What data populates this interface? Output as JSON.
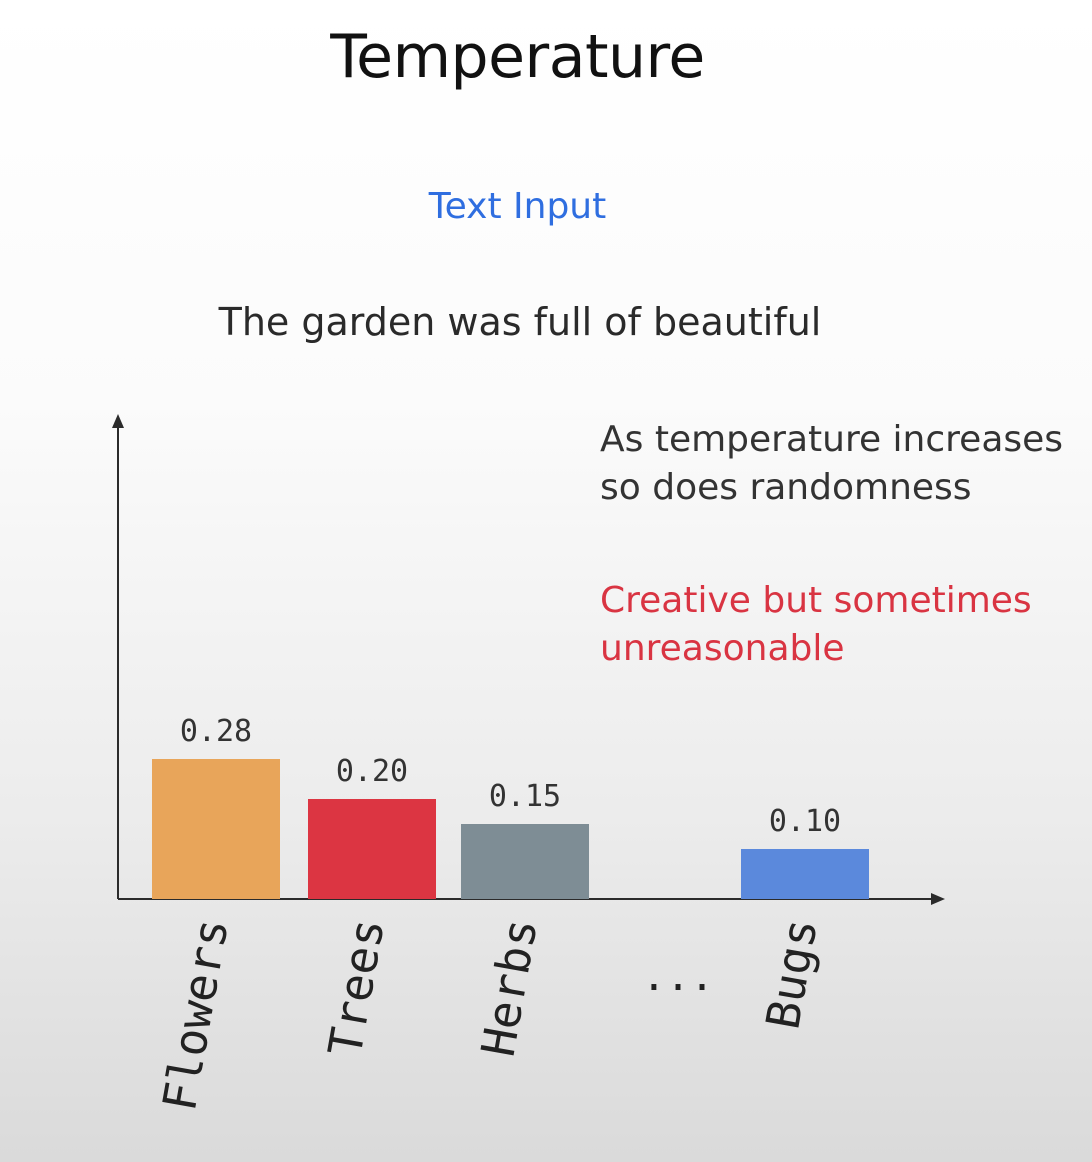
{
  "title": "Temperature",
  "subtitle": "Text Input",
  "prompt_text": "The garden was full of beautiful",
  "note": "As temperature increases so does randomness",
  "note_highlight": "Creative but sometimes unreasonable",
  "colors": {
    "title": "#111111",
    "subtitle": "#2f6ee0",
    "highlight": "#d93442",
    "bar_colors": [
      "#e8a55a",
      "#dc3542",
      "#7e8d95",
      "#5b89dc"
    ]
  },
  "chart_data": {
    "type": "bar",
    "categories": [
      "Flowers",
      "Trees",
      "Herbs",
      "...",
      "Bugs"
    ],
    "values": [
      0.28,
      0.2,
      0.15,
      null,
      0.1
    ],
    "value_labels": [
      "0.28",
      "0.20",
      "0.15",
      "",
      "0.10"
    ],
    "ylim": [
      0,
      0.3
    ],
    "grid": false,
    "legend": "none"
  }
}
